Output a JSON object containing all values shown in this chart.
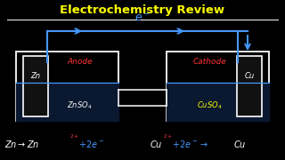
{
  "title": "Electrochemistry Review",
  "title_color": "#FFFF00",
  "bg_color": "#000000",
  "wire_color": "#4499FF",
  "box_color": "#FFFFFF",
  "liquid_color": "#4499FF",
  "liquid_fill": "#0a1830",
  "anode_label": "Anode",
  "cathode_label": "Cathode",
  "anode_color": "#FF3333",
  "cathode_color": "#FF3333",
  "znso4_color": "#FFFFFF",
  "cuso4_color": "#FFFF00",
  "react_color_white": "#FFFFFF",
  "react_color_red": "#FF3333",
  "react_color_blue": "#4499FF",
  "figw": 3.2,
  "figh": 1.8,
  "dpi": 100
}
